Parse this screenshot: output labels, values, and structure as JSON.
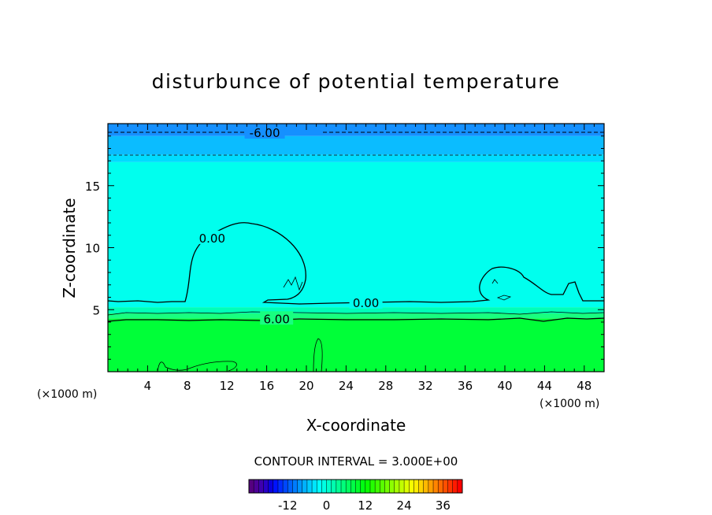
{
  "chart_data": {
    "type": "contour",
    "title": "disturbunce of potential temperature",
    "xlabel": "X-coordinate",
    "ylabel": "Z-coordinate",
    "x_unit": "(×1000 m)",
    "z_unit": "(×1000 m)",
    "xlim": [
      0,
      50
    ],
    "ylim": [
      0,
      20
    ],
    "x_ticks": [
      4,
      8,
      12,
      16,
      20,
      24,
      28,
      32,
      36,
      40,
      44,
      48
    ],
    "y_ticks": [
      5,
      10,
      15
    ],
    "bands": [
      {
        "z0": 0,
        "z1": 4.3,
        "color": "#00ff38"
      },
      {
        "z0": 4.3,
        "z1": 4.7,
        "color": "#18ff80"
      },
      {
        "z0": 4.7,
        "z1": 5.2,
        "color": "#00ffb8"
      },
      {
        "z0": 5.2,
        "z1": 16.9,
        "color": "#00ffee"
      },
      {
        "z0": 16.9,
        "z1": 17.5,
        "color": "#00dcff"
      },
      {
        "z0": 17.5,
        "z1": 19.0,
        "color": "#0bbcff"
      },
      {
        "z0": 19.0,
        "z1": 20,
        "color": "#1590ff"
      }
    ],
    "contour_labels": [
      {
        "text": "-6.00",
        "x": 15.8,
        "z": 19.3
      },
      {
        "text": "0.00",
        "x": 10.5,
        "z": 10.8
      },
      {
        "text": "0.00",
        "x": 26.0,
        "z": 5.6
      },
      {
        "text": "6.00",
        "x": 17.0,
        "z": 4.3
      }
    ],
    "contour_interval_text": "CONTOUR INTERVAL = 3.000E+00",
    "colorbar": {
      "min": -24,
      "max": 42,
      "tick_values": [
        -12,
        0,
        12,
        24,
        36
      ],
      "tick_labels": [
        "-12",
        "0",
        "12",
        "24",
        "36"
      ]
    }
  }
}
